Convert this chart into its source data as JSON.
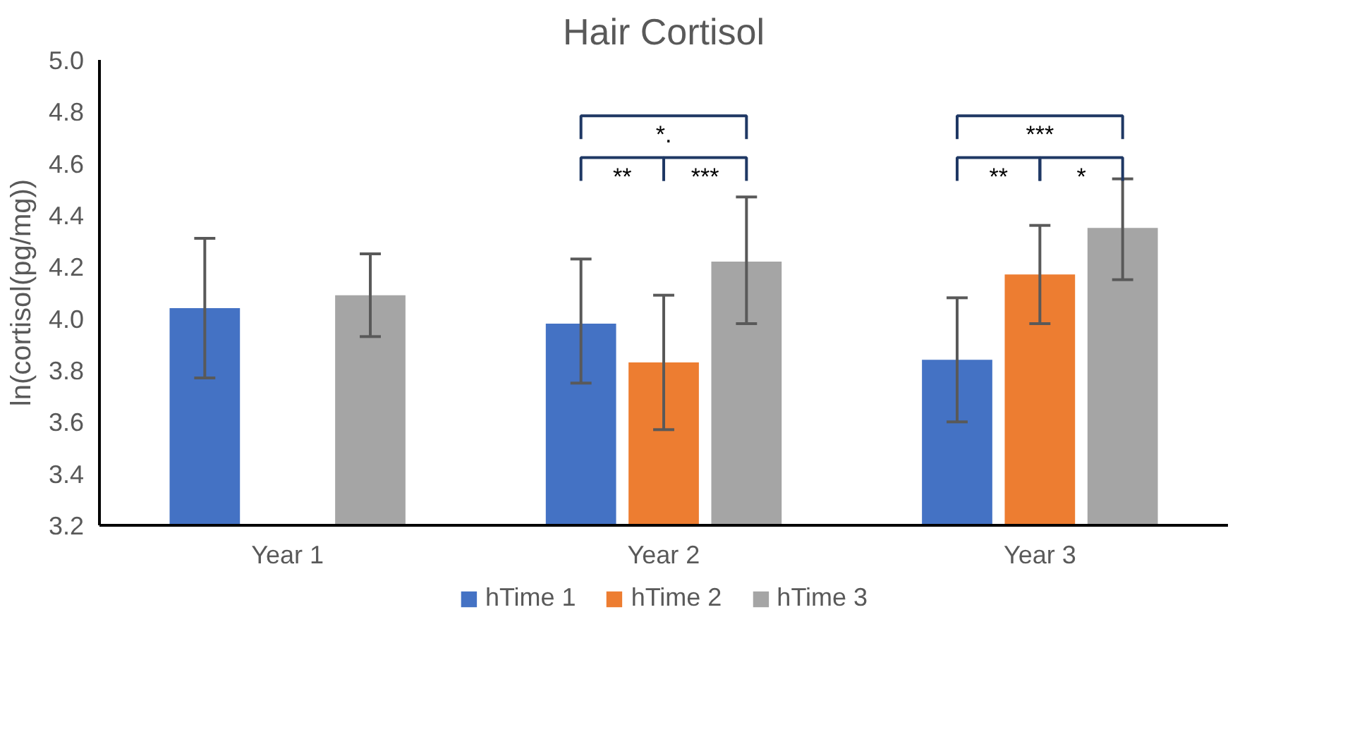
{
  "chart_data": {
    "type": "bar",
    "title": "Hair Cortisol",
    "ylabel": "ln(cortisol(pg/mg))",
    "categories": [
      "Year 1",
      "Year 2",
      "Year 3"
    ],
    "series": [
      {
        "name": "hTime 1",
        "color": "#4472c4",
        "values": [
          4.04,
          3.98,
          3.84
        ],
        "errors": [
          [
            3.77,
            4.31
          ],
          [
            3.75,
            4.23
          ],
          [
            3.6,
            4.08
          ]
        ]
      },
      {
        "name": "hTime 2",
        "color": "#ed7d31",
        "values": [
          null,
          3.83,
          4.17
        ],
        "errors": [
          null,
          [
            3.57,
            4.09
          ],
          [
            3.98,
            4.36
          ]
        ]
      },
      {
        "name": "hTime 3",
        "color": "#a5a5a5",
        "values": [
          4.09,
          4.22,
          4.35
        ],
        "errors": [
          [
            3.93,
            4.25
          ],
          [
            3.98,
            4.47
          ],
          [
            4.15,
            4.54
          ]
        ]
      }
    ],
    "ylim": [
      3.2,
      5.0
    ],
    "yticks": [
      3.2,
      3.4,
      3.6,
      3.8,
      {
        "value": 4.0,
        "label": "4.0"
      },
      4.2,
      4.4,
      4.6,
      4.8,
      {
        "value": 5.0,
        "label": "5.0"
      }
    ],
    "annotations": [
      "*.",
      "**",
      "***",
      "***",
      "**",
      "*"
    ],
    "grid": false,
    "legend": "bottom"
  }
}
